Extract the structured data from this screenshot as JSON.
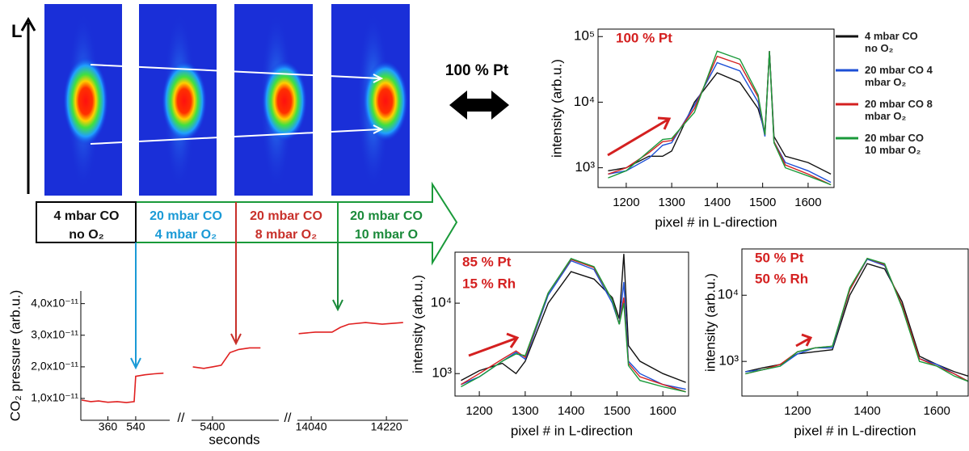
{
  "figure": {
    "l_axis": "L",
    "exchange_label": "100 % Pt",
    "conditions": [
      [
        "4 mbar CO",
        "no O₂"
      ],
      [
        "20 mbar CO",
        "4 mbar O₂"
      ],
      [
        "20 mbar CO",
        "8 mbar O₂"
      ],
      [
        "20 mbar CO",
        "10 mbar O"
      ]
    ],
    "condition_colors": [
      "#111111",
      "#1a9ad6",
      "#c8302a",
      "#1a8a3a"
    ]
  },
  "chart_data": [
    {
      "type": "line",
      "log_y": true,
      "y_label": "intensity (arb.u.)",
      "x_label": "pixel # in L-direction",
      "annotations": [
        "100 % Pt"
      ],
      "legend": true,
      "xlim": [
        1138,
        1657
      ],
      "xticks": [
        1200,
        1300,
        1400,
        1500,
        1600
      ],
      "ylim": [
        500,
        130000
      ],
      "yticks": [
        {
          "value": 1000,
          "label": "10³"
        },
        {
          "value": 10000,
          "label": "10⁴"
        },
        {
          "value": 100000,
          "label": "10⁵"
        }
      ],
      "x": [
        1160,
        1200,
        1250,
        1280,
        1300,
        1350,
        1400,
        1450,
        1490,
        1505,
        1515,
        1525,
        1550,
        1600,
        1650
      ],
      "series": [
        {
          "name": "4 mbar CO no O₂",
          "color": "#111111",
          "values": [
            900,
            1000,
            1500,
            1500,
            1800,
            10000,
            28000,
            20000,
            8000,
            3500,
            60000,
            3000,
            1500,
            1200,
            800
          ]
        },
        {
          "name": "20 mbar CO 4 mbar O₂",
          "color": "#1c4fd6",
          "values": [
            800,
            900,
            1400,
            2200,
            2400,
            9000,
            40000,
            30000,
            10000,
            3000,
            60000,
            2500,
            1200,
            900,
            600
          ]
        },
        {
          "name": "20 mbar CO 8 mbar O₂",
          "color": "#d42020",
          "values": [
            800,
            1000,
            1700,
            2500,
            2600,
            8000,
            50000,
            38000,
            12000,
            3200,
            60000,
            2500,
            1100,
            800,
            550
          ]
        },
        {
          "name": "20 mbar CO 10 mbar O₂",
          "color": "#1a9a3a",
          "values": [
            700,
            900,
            1800,
            2700,
            2800,
            7000,
            60000,
            45000,
            13000,
            3200,
            60000,
            2400,
            1000,
            750,
            550
          ]
        }
      ]
    },
    {
      "type": "line",
      "log_y": true,
      "y_label": "intensity (arb.u.)",
      "x_label": "pixel # in L-direction",
      "annotations": [
        "85 % Pt",
        "15 % Rh"
      ],
      "xlim": [
        1147,
        1656
      ],
      "xticks": [
        1200,
        1300,
        1400,
        1500,
        1600
      ],
      "ylim": [
        480,
        53000
      ],
      "yticks": [
        {
          "value": 1000,
          "label": "10³"
        },
        {
          "value": 10000,
          "label": "10⁴"
        }
      ],
      "x": [
        1160,
        1200,
        1250,
        1280,
        1300,
        1350,
        1400,
        1450,
        1490,
        1505,
        1515,
        1525,
        1550,
        1600,
        1650
      ],
      "series": [
        {
          "color": "#111111",
          "values": [
            800,
            1100,
            1400,
            1000,
            1500,
            10000,
            28000,
            22000,
            12000,
            6000,
            50000,
            2500,
            1500,
            1000,
            750
          ]
        },
        {
          "color": "#1c4fd6",
          "values": [
            700,
            900,
            1500,
            2000,
            1600,
            13000,
            40000,
            30000,
            10000,
            5000,
            20000,
            1500,
            1000,
            700,
            600
          ]
        },
        {
          "color": "#d42020",
          "values": [
            700,
            1000,
            1600,
            2100,
            1700,
            14000,
            42000,
            32000,
            11000,
            5000,
            12000,
            1400,
            900,
            700,
            550
          ]
        },
        {
          "color": "#1a9a3a",
          "values": [
            650,
            900,
            1500,
            1900,
            1800,
            14000,
            43000,
            33000,
            11000,
            5000,
            10000,
            1300,
            800,
            650,
            550
          ]
        }
      ]
    },
    {
      "type": "line",
      "log_y": true,
      "y_label": "intensity (arb.u.)",
      "x_label": "pixel # in L-direction",
      "annotations": [
        "50 % Pt",
        "50 % Rh"
      ],
      "xlim": [
        1040,
        1690
      ],
      "xticks": [
        1200,
        1400,
        1600
      ],
      "ylim": [
        300,
        50000
      ],
      "yticks": [
        {
          "value": 1000,
          "label": "10³"
        },
        {
          "value": 10000,
          "label": "10⁴"
        }
      ],
      "x": [
        1050,
        1100,
        1150,
        1200,
        1250,
        1300,
        1350,
        1400,
        1450,
        1500,
        1550,
        1600,
        1650,
        1690
      ],
      "series": [
        {
          "color": "#111111",
          "values": [
            700,
            800,
            900,
            1300,
            1400,
            1500,
            10000,
            30000,
            25000,
            8000,
            1200,
            900,
            700,
            600
          ]
        },
        {
          "color": "#1c4fd6",
          "values": [
            700,
            750,
            850,
            1300,
            1600,
            1600,
            12000,
            35000,
            28000,
            7000,
            1100,
            900,
            650,
            500
          ]
        },
        {
          "color": "#d42020",
          "values": [
            650,
            750,
            900,
            1400,
            1600,
            1700,
            12000,
            36000,
            29000,
            7000,
            1100,
            850,
            650,
            500
          ]
        },
        {
          "color": "#1a9a3a",
          "values": [
            650,
            750,
            850,
            1400,
            1600,
            1700,
            13000,
            36000,
            30000,
            6500,
            1000,
            850,
            600,
            500
          ]
        }
      ]
    },
    {
      "type": "broken_line",
      "y_label": "CO₂ pressure (arb.u.)",
      "x_label": "seconds",
      "break_label": "//",
      "color": "#e02020",
      "ylim": [
        3.1e-12,
        4.4e-11
      ],
      "yticks": [
        {
          "value": 1e-11,
          "label": "1,0x10⁻¹¹"
        },
        {
          "value": 2e-11,
          "label": "2,0x10⁻¹¹"
        },
        {
          "value": 3e-11,
          "label": "3,0x10⁻¹¹"
        },
        {
          "value": 4e-11,
          "label": "4,0x10⁻¹¹"
        }
      ],
      "segments": [
        {
          "xlim": [
            185,
            760
          ],
          "xticks": [
            360,
            540
          ],
          "x": [
            190,
            250,
            300,
            360,
            420,
            480,
            530,
            540,
            600,
            660,
            720
          ],
          "values": [
            9.5e-12,
            9e-12,
            9.2e-12,
            8.8e-12,
            9e-12,
            8.7e-12,
            9e-12,
            1.7e-11,
            1.75e-11,
            1.78e-11,
            1.8e-11
          ]
        },
        {
          "xlim": [
            5304,
            5704
          ],
          "xticks": [
            5400
          ],
          "x": [
            5310,
            5360,
            5400,
            5440,
            5480,
            5520,
            5570,
            5620
          ],
          "values": [
            2e-11,
            1.95e-11,
            2e-11,
            2.05e-11,
            2.45e-11,
            2.55e-11,
            2.6e-11,
            2.6e-11
          ]
        },
        {
          "xlim": [
            14007,
            14272
          ],
          "xticks": [
            14040,
            14220
          ],
          "x": [
            14010,
            14050,
            14090,
            14110,
            14130,
            14170,
            14210,
            14260
          ],
          "values": [
            3.05e-11,
            3.1e-11,
            3.1e-11,
            3.25e-11,
            3.35e-11,
            3.4e-11,
            3.35e-11,
            3.4e-11
          ]
        }
      ]
    }
  ]
}
